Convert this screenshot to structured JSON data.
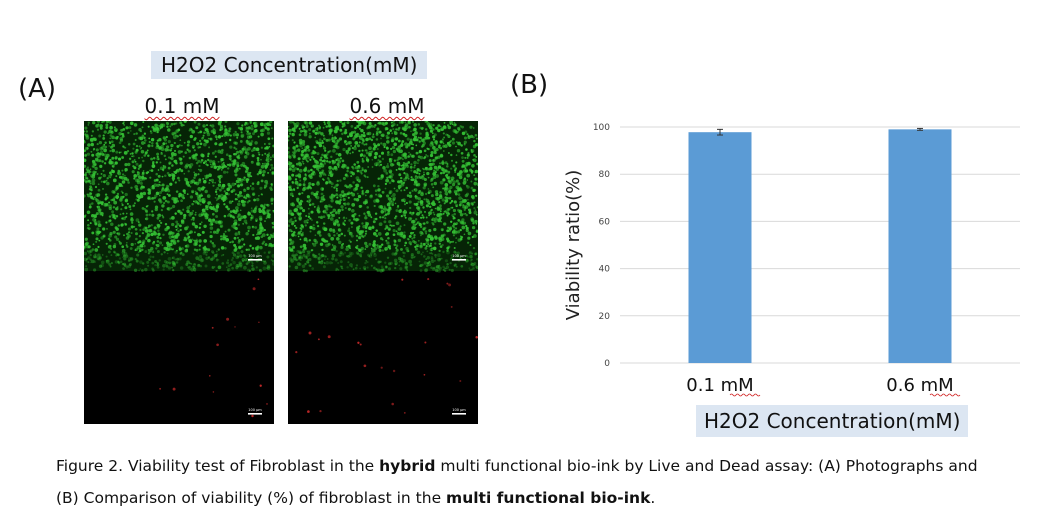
{
  "panel_a": {
    "label": "(A)",
    "header": "H2O2 Concentration(mM)",
    "columns": [
      "0.1 mM",
      "0.6 mM"
    ],
    "scale_bar": "100 μm"
  },
  "panel_b": {
    "label": "(B)"
  },
  "chart_data": {
    "type": "bar",
    "categories": [
      "0.1 mM",
      "0.6 mM"
    ],
    "values": [
      97.8,
      99.0
    ],
    "errors": [
      1.2,
      0.4
    ],
    "ylabel": "Viability ratio(%)",
    "xlabel": "H2O2 Concentration(mM)",
    "ylim": [
      0,
      100
    ],
    "yticks": [
      0,
      20,
      40,
      60,
      80,
      100
    ],
    "grid": true,
    "bar_color": "#5b9bd5"
  },
  "caption": {
    "line1_a": "Figure 2. Viability test of Fibroblast in the ",
    "line1_bold1": "hybrid",
    "line1_b": "  multi functional bio-ink by Live and Dead assay: (A) Photographs and",
    "line2_a": "(B) Comparison of viability (%) of  fibroblast  in the ",
    "line2_bold": "multi functional bio-ink",
    "line2_b": "."
  },
  "colors": {
    "live": "#34c034",
    "dead": "#cc2a2a",
    "header_bg": "#dce6f2"
  }
}
